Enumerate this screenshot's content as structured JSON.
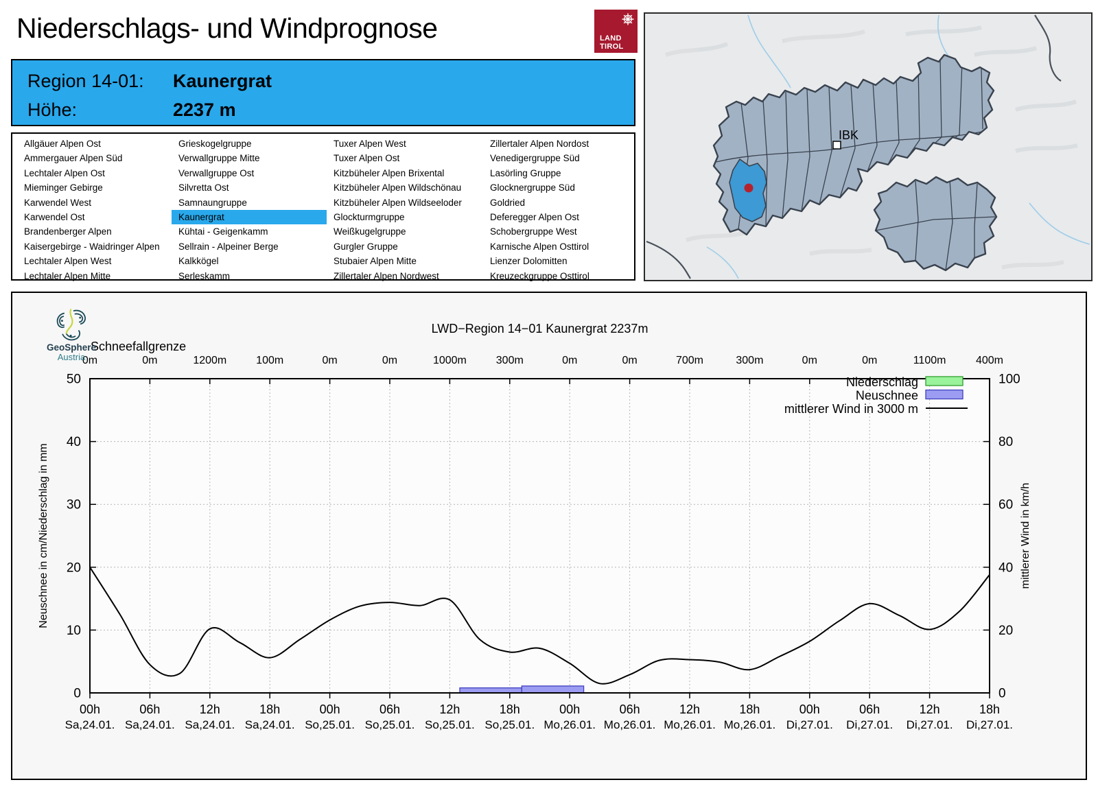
{
  "header": {
    "title": "Niederschlags- und Windprognose",
    "land_tirol_logo": {
      "line1": "LAND",
      "line2": "TIROL",
      "color": "#a6192e"
    }
  },
  "info_box": {
    "background": "#29a8ec",
    "rows": [
      {
        "label": "Region 14-01:",
        "value": "Kaunergrat"
      },
      {
        "label": "Höhe:",
        "value": "2237 m"
      }
    ]
  },
  "region_list": {
    "selected": "Kaunergrat",
    "highlight_color": "#29a8ec",
    "columns": [
      [
        "Allgäuer Alpen Ost",
        "Ammergauer Alpen Süd",
        "Lechtaler Alpen Ost",
        "Mieminger Gebirge",
        "Karwendel West",
        "Karwendel Ost",
        "Brandenberger Alpen",
        "Kaisergebirge - Waidringer Alpen",
        "Lechtaler Alpen West",
        "Lechtaler Alpen Mitte"
      ],
      [
        "Grieskogelgruppe",
        "Verwallgruppe Mitte",
        "Verwallgruppe Ost",
        "Silvretta Ost",
        "Samnaungruppe",
        "Kaunergrat",
        "Kühtai - Geigenkamm",
        "Sellrain - Alpeiner Berge",
        "Kalkkögel",
        "Serleskamm"
      ],
      [
        "Tuxer Alpen West",
        "Tuxer Alpen Ost",
        "Kitzbüheler Alpen Brixental",
        "Kitzbüheler Alpen Wildschönau",
        "Kitzbüheler Alpen Wildseeloder",
        "Glockturmgruppe",
        "Weißkugelgruppe",
        "Gurgler Gruppe",
        "Stubaier Alpen Mitte",
        "Zillertaler Alpen Nordwest"
      ],
      [
        "Zillertaler Alpen Nordost",
        "Venedigergruppe Süd",
        "Lasörling Gruppe",
        "Glocknergruppe Süd",
        "Goldried",
        "Deferegger Alpen Ost",
        "Schobergruppe West",
        "Karnische Alpen Osttirol",
        "Lienzer Dolomitten",
        "Kreuzeckgruppe Osttirol"
      ]
    ]
  },
  "map": {
    "city_label": "IBK",
    "region_fill": "#a2b2c5",
    "region_stroke": "#39424d",
    "highlight_fill": "#3d9ad5",
    "marker_color": "#b5222e"
  },
  "branding": {
    "geosphere": {
      "line1": "GeoSphere",
      "line2": "Austria"
    }
  },
  "chart_data": {
    "type": "line",
    "title": "LWD−Region 14−01 Kaunergrat 2237m",
    "snowline_label": "Schneefallgrenze",
    "snowline_values": [
      "0m",
      "0m",
      "1200m",
      "100m",
      "0m",
      "0m",
      "1000m",
      "300m",
      "0m",
      "0m",
      "700m",
      "300m",
      "0m",
      "0m",
      "1100m",
      "400m"
    ],
    "x_ticks": [
      {
        "time": "00h",
        "date": "Sa,24.01."
      },
      {
        "time": "06h",
        "date": "Sa,24.01."
      },
      {
        "time": "12h",
        "date": "Sa,24.01."
      },
      {
        "time": "18h",
        "date": "Sa,24.01."
      },
      {
        "time": "00h",
        "date": "So,25.01."
      },
      {
        "time": "06h",
        "date": "So,25.01."
      },
      {
        "time": "12h",
        "date": "So,25.01."
      },
      {
        "time": "18h",
        "date": "So,25.01."
      },
      {
        "time": "00h",
        "date": "Mo,26.01."
      },
      {
        "time": "06h",
        "date": "Mo,26.01."
      },
      {
        "time": "12h",
        "date": "Mo,26.01."
      },
      {
        "time": "18h",
        "date": "Mo,26.01."
      },
      {
        "time": "00h",
        "date": "Di,27.01."
      },
      {
        "time": "06h",
        "date": "Di,27.01."
      },
      {
        "time": "12h",
        "date": "Di,27.01."
      },
      {
        "time": "18h",
        "date": "Di,27.01."
      }
    ],
    "x_total_hours": 90,
    "grid": true,
    "left_axis": {
      "label": "Neuschnee in cm/Niederschlag in mm",
      "min": 0,
      "max": 50,
      "ticks": [
        0,
        10,
        20,
        30,
        40,
        50
      ]
    },
    "right_axis": {
      "label": "mittlerer Wind in km/h",
      "min": 0,
      "max": 100,
      "ticks": [
        0,
        20,
        40,
        60,
        80,
        100
      ]
    },
    "legend": [
      {
        "label": "Niederschlag",
        "swatch": "box",
        "fill": "#9af29a",
        "stroke": "#2e9e2e"
      },
      {
        "label": "Neuschnee",
        "swatch": "box",
        "fill": "#9c9cf2",
        "stroke": "#4040c0"
      },
      {
        "label": "mittlerer Wind in 3000 m",
        "swatch": "line",
        "stroke": "#000000"
      }
    ],
    "series": [
      {
        "name": "mittlerer Wind in 3000 m",
        "type": "line",
        "axis": "right",
        "unit": "km/h",
        "hours_from_start": [
          0,
          3,
          6,
          9,
          12,
          15,
          18,
          21,
          24,
          27,
          30,
          33,
          36,
          39,
          42,
          45,
          48,
          51,
          54,
          57,
          60,
          63,
          66,
          69,
          72,
          75,
          78,
          81,
          84,
          87,
          90
        ],
        "values": [
          40,
          25,
          9,
          6.2,
          20.4,
          16,
          11.2,
          17,
          23.2,
          27.6,
          28.8,
          27.8,
          29.6,
          17,
          13,
          14.2,
          9.4,
          3,
          5.8,
          10.4,
          10.6,
          9.8,
          7.4,
          11.6,
          16.4,
          23,
          28.4,
          24.6,
          20.2,
          26,
          37.6
        ]
      },
      {
        "name": "Neuschnee",
        "type": "bar",
        "axis": "left",
        "unit": "cm",
        "bars": [
          {
            "start_hour": 37,
            "end_hour": 43.2,
            "value": 0.8
          },
          {
            "start_hour": 43.2,
            "end_hour": 49.4,
            "value": 1.1
          }
        ]
      },
      {
        "name": "Niederschlag",
        "type": "bar",
        "axis": "left",
        "unit": "mm",
        "bars": []
      }
    ]
  }
}
